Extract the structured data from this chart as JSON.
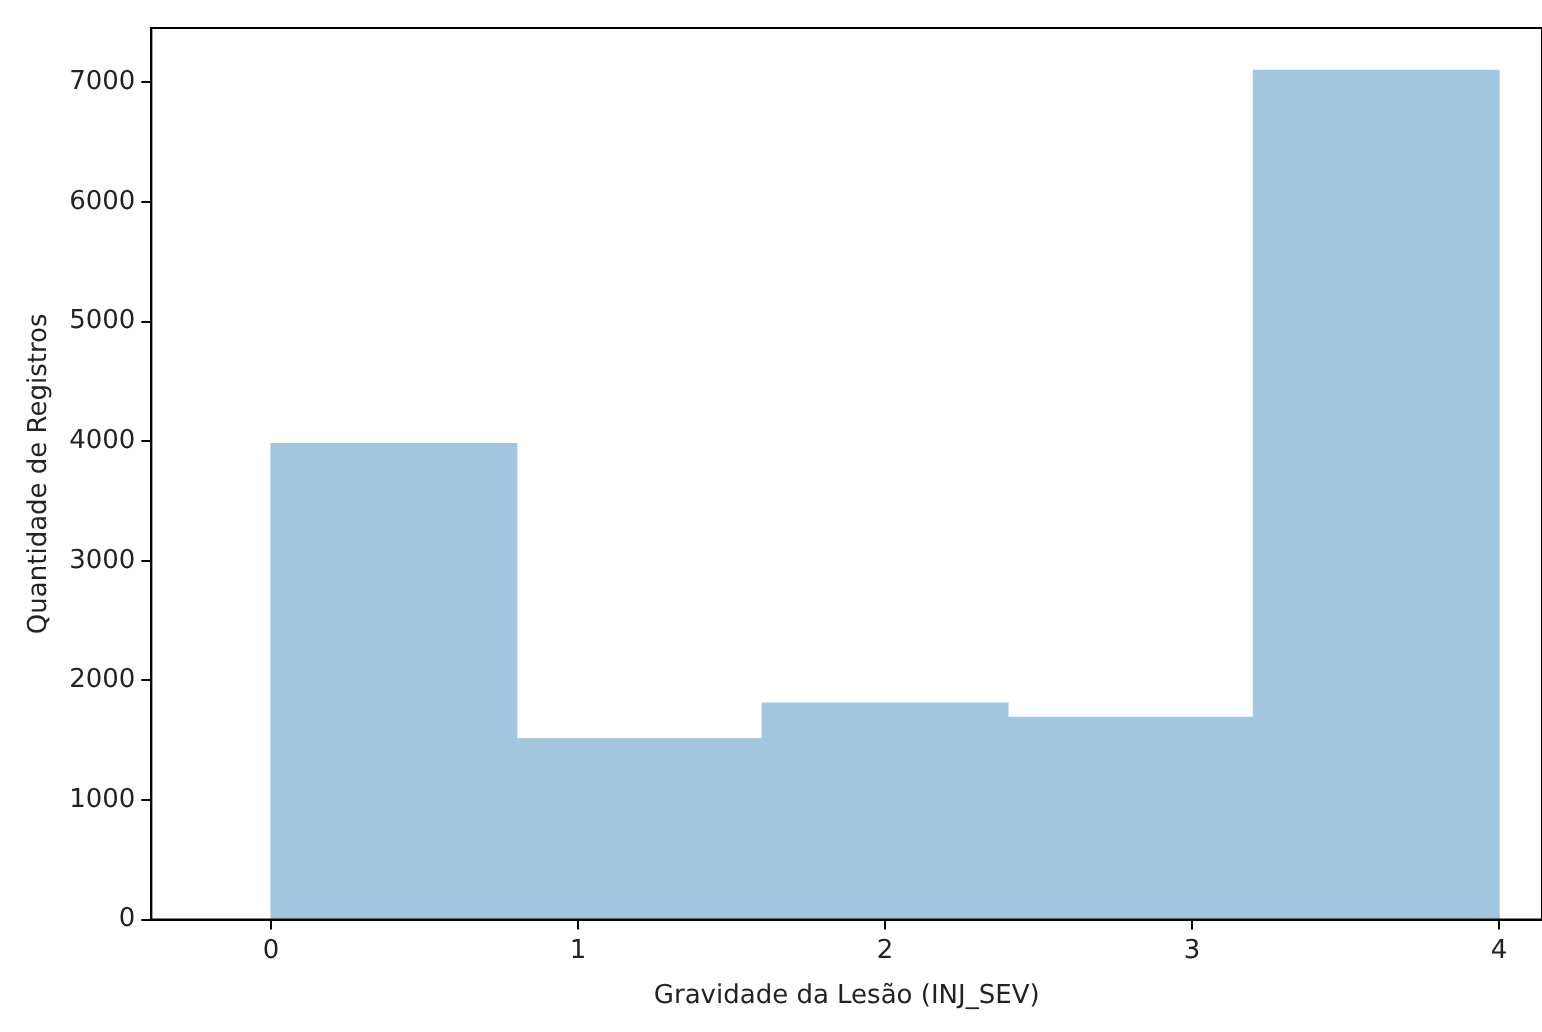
{
  "chart_data": {
    "type": "histogram",
    "xlabel": "Gravidade da Lesão (INJ_SEV)",
    "ylabel": "Quantidade de Registros",
    "bins": [
      0,
      0.8,
      1.6,
      2.4,
      3.2,
      4
    ],
    "values": [
      3980,
      1510,
      1810,
      1690,
      7100
    ],
    "color": "#a3c6df",
    "xlim": [
      -0.39,
      4.14
    ],
    "xticks": [
      0,
      1,
      2,
      3,
      4
    ],
    "ylim": [
      0,
      7455
    ],
    "yticks": [
      0,
      1000,
      2000,
      3000,
      4000,
      5000,
      6000,
      7000
    ],
    "grid": false
  }
}
